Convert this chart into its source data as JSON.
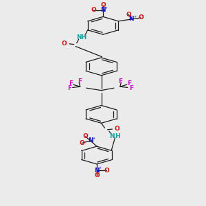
{
  "bg_color": "#ebebeb",
  "bond_color": "#1a1a1a",
  "nitrogen_color": "#1414cc",
  "oxygen_color": "#cc1414",
  "fluorine_color": "#cc14cc",
  "amide_n_color": "#14a0a0",
  "lw": 0.9,
  "fs": 6.5,
  "fs_charge": 4.5,
  "ring_r": 0.52,
  "xlim": [
    0,
    6
  ],
  "ylim": [
    0,
    12
  ]
}
